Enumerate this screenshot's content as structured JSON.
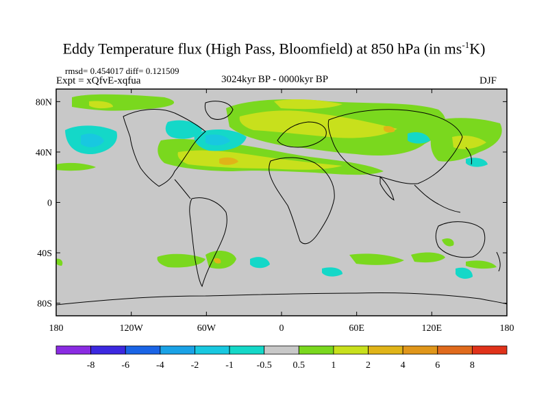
{
  "header": {
    "title_prefix": "Eddy Temperature flux (High Pass, Bloomfield) at 850 hPa (in ms",
    "title_sup": "-1",
    "title_suffix": "K)",
    "stats": "rmsd= 0.454017 diff= 0.121509",
    "experiment": "Expt = xQfvE-xqfua",
    "period": "3024kyr BP - 0000kyr BP",
    "season": "DJF"
  },
  "axes": {
    "lat_labels": [
      "80N",
      "40N",
      "0",
      "40S",
      "80S"
    ],
    "lat_values": [
      80,
      40,
      0,
      -40,
      -80
    ],
    "lon_labels": [
      "180",
      "120W",
      "60W",
      "0",
      "60E",
      "120E",
      "180"
    ],
    "lon_values": [
      -180,
      -120,
      -60,
      0,
      60,
      120,
      180
    ],
    "lat_range": [
      -90,
      90
    ],
    "lon_range": [
      -180,
      180
    ]
  },
  "colorbar": {
    "labels": [
      "-8",
      "-6",
      "-4",
      "-2",
      "-1",
      "-0.5",
      "0.5",
      "1",
      "2",
      "4",
      "6",
      "8"
    ],
    "colors": [
      "#8a2be2",
      "#3c28e0",
      "#1a64e6",
      "#1aa2e6",
      "#18c8e0",
      "#14d8c8",
      "#c8c8c8",
      "#7ad81e",
      "#c8e01c",
      "#e0b418",
      "#e0961a",
      "#e06a1c",
      "#e0321a"
    ]
  },
  "colors": {
    "land_background": "#c8c8c8",
    "coast": "#000000"
  }
}
